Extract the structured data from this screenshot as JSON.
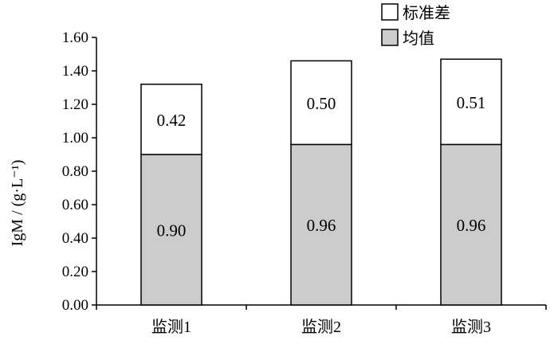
{
  "chart_data": {
    "type": "bar",
    "stacked": true,
    "categories": [
      "监测1",
      "监测2",
      "监测3"
    ],
    "series": [
      {
        "name": "均值",
        "values": [
          0.9,
          0.96,
          0.96
        ],
        "labels": [
          "0.90",
          "0.96",
          "0.96"
        ],
        "color": "#cccccc"
      },
      {
        "name": "标准差",
        "values": [
          0.42,
          0.5,
          0.51
        ],
        "labels": [
          "0.42",
          "0.50",
          "0.51"
        ],
        "color": "#ffffff"
      }
    ],
    "ylabel": "IgM / (g·L⁻¹)",
    "ylim": [
      0,
      1.6
    ],
    "yticks": [
      "0.00",
      "0.20",
      "0.40",
      "0.60",
      "0.80",
      "1.00",
      "1.20",
      "1.40",
      "1.60"
    ],
    "grid": false,
    "legend_position": "top-right",
    "legend_order": [
      "标准差",
      "均值"
    ]
  }
}
